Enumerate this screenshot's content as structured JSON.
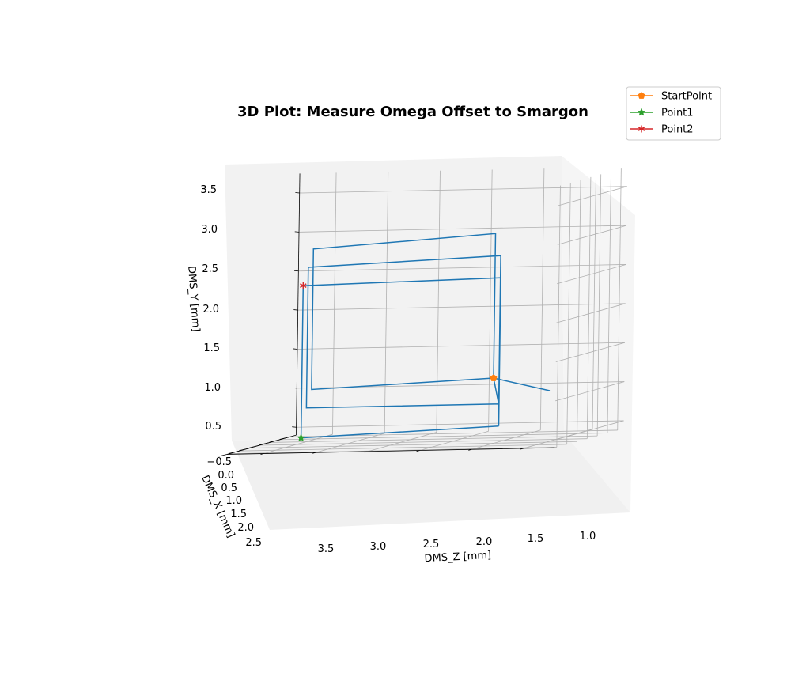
{
  "chart_data": {
    "type": "line3d",
    "title": "3D Plot: Measure Omega Offset to Smargon",
    "xlabel": "DMS_X [mm]",
    "ylabel": "DMS_Y [mm]",
    "zlabel": "DMS_Z [mm]",
    "x_ticks": [
      "−0.5",
      "0.0",
      "0.5",
      "1.0",
      "1.5",
      "2.0",
      "2.5"
    ],
    "y_ticks": [
      "0.5",
      "1.0",
      "1.5",
      "2.0",
      "2.5",
      "3.0",
      "3.5"
    ],
    "z_ticks": [
      "3.5",
      "3.0",
      "2.5",
      "2.0",
      "1.5",
      "1.0"
    ],
    "xlim": [
      -0.8,
      2.6
    ],
    "ylim": [
      0.4,
      3.75
    ],
    "zlim": [
      0.7,
      3.85
    ],
    "grid": true,
    "legend_position": "top-right",
    "series": [
      {
        "name": "",
        "color": "#1f77b4",
        "marker": "none",
        "points": [
          {
            "x": -0.1,
            "y": 0.95,
            "z": 1.28
          },
          {
            "x": -0.5,
            "y": 1.1,
            "z": 1.9
          },
          {
            "x": -0.5,
            "y": 1.0,
            "z": 3.65
          },
          {
            "x": -0.5,
            "y": 2.8,
            "z": 3.65
          },
          {
            "x": -0.5,
            "y": 2.95,
            "z": 1.9
          },
          {
            "x": -0.5,
            "y": 1.1,
            "z": 1.9
          },
          {
            "x": 0.0,
            "y": 0.8,
            "z": 1.75
          },
          {
            "x": 0.0,
            "y": 0.8,
            "z": 3.6
          },
          {
            "x": 0.0,
            "y": 2.6,
            "z": 3.6
          },
          {
            "x": 0.0,
            "y": 2.7,
            "z": 1.75
          },
          {
            "x": 0.0,
            "y": 0.8,
            "z": 1.75
          },
          {
            "x": 0.5,
            "y": 0.55,
            "z": 1.65
          },
          {
            "x": 0.5,
            "y": 2.45,
            "z": 1.65
          },
          {
            "x": 0.5,
            "y": 2.4,
            "z": 3.55
          },
          {
            "x": 0.5,
            "y": 0.45,
            "z": 3.55
          },
          {
            "x": 0.5,
            "y": 0.55,
            "z": 1.65
          }
        ]
      },
      {
        "name": "StartPoint",
        "color": "#ff7f0e",
        "marker": "pentagon",
        "points": [
          {
            "x": -0.5,
            "y": 1.1,
            "z": 1.9
          }
        ]
      },
      {
        "name": "Point1",
        "color": "#2ca02c",
        "marker": "star",
        "points": [
          {
            "x": 0.5,
            "y": 0.45,
            "z": 3.55
          }
        ]
      },
      {
        "name": "Point2",
        "color": "#d62728",
        "marker": "tri_star",
        "points": [
          {
            "x": 0.5,
            "y": 2.4,
            "z": 3.55
          }
        ]
      }
    ]
  }
}
